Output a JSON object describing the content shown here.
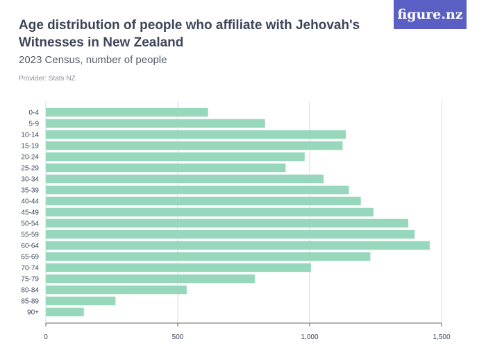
{
  "header": {
    "title": "Age distribution of people who affiliate with Jehovah's Witnesses in New Zealand",
    "subtitle": "2023 Census, number of people",
    "provider": "Provider: Stats NZ",
    "logo": "figure.nz"
  },
  "colors": {
    "bar": "#97d8bd",
    "grid": "#d9d9d9",
    "logo_bg": "#5a5fc4"
  },
  "chart_data": {
    "type": "bar",
    "orientation": "horizontal",
    "categories": [
      "0-4",
      "5-9",
      "10-14",
      "15-19",
      "20-24",
      "25-29",
      "30-34",
      "35-39",
      "40-44",
      "45-49",
      "50-54",
      "55-59",
      "60-64",
      "65-69",
      "70-74",
      "75-79",
      "80-84",
      "85-89",
      "90+"
    ],
    "values": [
      615,
      831,
      1137,
      1125,
      981,
      909,
      1053,
      1149,
      1194,
      1242,
      1374,
      1398,
      1455,
      1230,
      1005,
      792,
      534,
      264,
      144
    ],
    "xlim": [
      0,
      1500
    ],
    "xticks": [
      0,
      500,
      1000,
      1500
    ],
    "xtick_labels": [
      "0",
      "500",
      "1,000",
      "1,500"
    ],
    "grid": true
  }
}
